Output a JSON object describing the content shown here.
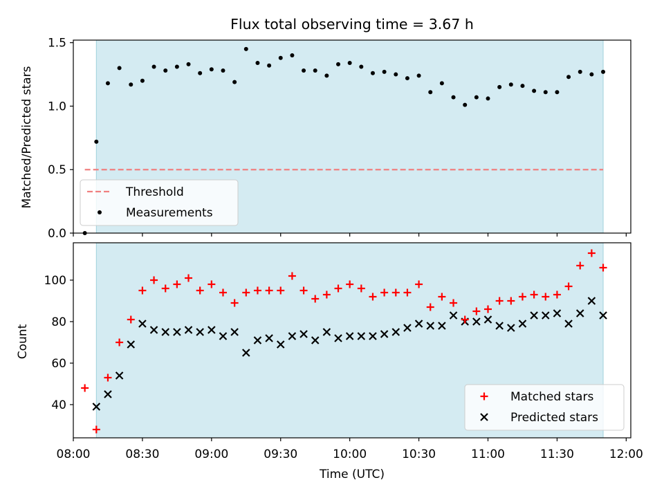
{
  "figure": {
    "title": "Flux total observing time = 3.67 h",
    "xlabel": "Time (UTC)"
  },
  "chart_data": [
    {
      "type": "scatter",
      "name": "ratio-panel",
      "ylabel": "Matched/Predicted stars",
      "ylim": [
        0,
        1.52
      ],
      "yticks": [
        0.0,
        0.5,
        1.0,
        1.5
      ],
      "ytick_labels": [
        "0.0",
        "0.5",
        "1.0",
        "1.5"
      ],
      "xlim_minutes": [
        480,
        722
      ],
      "shaded_span_minutes": [
        490,
        710
      ],
      "shade_color": "#add8e6",
      "threshold": {
        "label": "Threshold",
        "value": 0.5,
        "x_range_minutes": [
          485,
          710
        ],
        "color": "#f08080"
      },
      "legend": [
        {
          "label": "Threshold",
          "style": "dashed-line",
          "color": "#f08080"
        },
        {
          "label": "Measurements",
          "style": "dot",
          "color": "#000000"
        }
      ],
      "series": [
        {
          "name": "Measurements",
          "color": "#000000",
          "marker": "dot",
          "x_minutes": [
            485,
            490,
            495,
            500,
            505,
            510,
            515,
            520,
            525,
            530,
            535,
            540,
            545,
            550,
            555,
            560,
            565,
            570,
            575,
            580,
            585,
            590,
            595,
            600,
            605,
            610,
            615,
            620,
            625,
            630,
            635,
            640,
            645,
            650,
            655,
            660,
            665,
            670,
            675,
            680,
            685,
            690,
            695,
            700,
            705,
            710
          ],
          "values": [
            0.0,
            0.72,
            1.18,
            1.3,
            1.17,
            1.2,
            1.31,
            1.28,
            1.31,
            1.33,
            1.26,
            1.29,
            1.28,
            1.19,
            1.45,
            1.34,
            1.32,
            1.38,
            1.4,
            1.28,
            1.28,
            1.24,
            1.33,
            1.34,
            1.31,
            1.26,
            1.27,
            1.25,
            1.22,
            1.24,
            1.11,
            1.18,
            1.07,
            1.01,
            1.07,
            1.06,
            1.15,
            1.17,
            1.16,
            1.12,
            1.11,
            1.11,
            1.23,
            1.27,
            1.25,
            1.27
          ]
        }
      ]
    },
    {
      "type": "scatter",
      "name": "count-panel",
      "ylabel": "Count",
      "ylim": [
        24,
        118
      ],
      "yticks": [
        40,
        60,
        80,
        100
      ],
      "ytick_labels": [
        "40",
        "60",
        "80",
        "100"
      ],
      "xlim_minutes": [
        480,
        722
      ],
      "xticks_minutes": [
        480,
        510,
        540,
        570,
        600,
        630,
        660,
        690,
        720
      ],
      "xtick_labels": [
        "08:00",
        "08:30",
        "09:00",
        "09:30",
        "10:00",
        "10:30",
        "11:00",
        "11:30",
        "12:00"
      ],
      "shaded_span_minutes": [
        490,
        710
      ],
      "shade_color": "#add8e6",
      "legend": [
        {
          "label": "Matched stars",
          "style": "plus",
          "color": "#ff0000"
        },
        {
          "label": "Predicted stars",
          "style": "cross",
          "color": "#000000"
        }
      ],
      "series": [
        {
          "name": "Matched stars",
          "color": "#ff0000",
          "marker": "plus",
          "x_minutes": [
            485,
            490,
            495,
            500,
            505,
            510,
            515,
            520,
            525,
            530,
            535,
            540,
            545,
            550,
            555,
            560,
            565,
            570,
            575,
            580,
            585,
            590,
            595,
            600,
            605,
            610,
            615,
            620,
            625,
            630,
            635,
            640,
            645,
            650,
            655,
            660,
            665,
            670,
            675,
            680,
            685,
            690,
            695,
            700,
            705,
            710
          ],
          "values": [
            48,
            28,
            53,
            70,
            81,
            95,
            100,
            96,
            98,
            101,
            95,
            98,
            94,
            89,
            94,
            95,
            95,
            95,
            102,
            95,
            91,
            93,
            96,
            98,
            96,
            92,
            94,
            94,
            94,
            98,
            87,
            92,
            89,
            81,
            85,
            86,
            90,
            90,
            92,
            93,
            92,
            93,
            97,
            107,
            113,
            106
          ]
        },
        {
          "name": "Predicted stars",
          "color": "#000000",
          "marker": "cross",
          "x_minutes": [
            490,
            495,
            500,
            505,
            510,
            515,
            520,
            525,
            530,
            535,
            540,
            545,
            550,
            555,
            560,
            565,
            570,
            575,
            580,
            585,
            590,
            595,
            600,
            605,
            610,
            615,
            620,
            625,
            630,
            635,
            640,
            645,
            650,
            655,
            660,
            665,
            670,
            675,
            680,
            685,
            690,
            695,
            700,
            705,
            710
          ],
          "values": [
            39,
            45,
            54,
            69,
            79,
            76,
            75,
            75,
            76,
            75,
            76,
            73,
            75,
            65,
            71,
            72,
            69,
            73,
            74,
            71,
            75,
            72,
            73,
            73,
            73,
            74,
            75,
            77,
            79,
            78,
            78,
            83,
            80,
            80,
            81,
            78,
            77,
            79,
            83,
            83,
            84,
            79,
            84,
            90,
            83
          ]
        }
      ]
    }
  ]
}
